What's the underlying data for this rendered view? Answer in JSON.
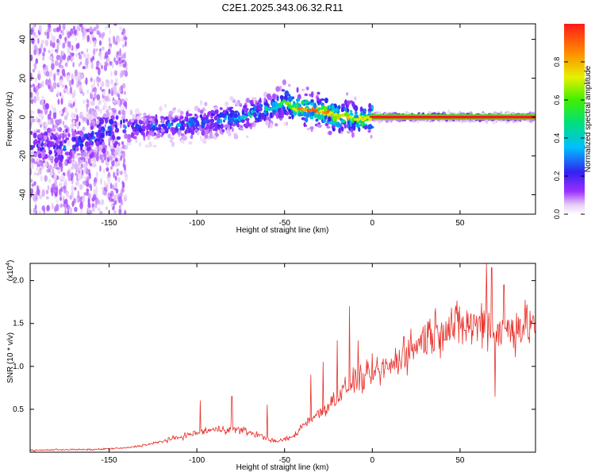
{
  "figure_title": "C2E1.2025.343.06.32.R11",
  "colors": {
    "line": "#e8302a",
    "axis": "#000000",
    "background": "#ffffff"
  },
  "chart_data": [
    {
      "type": "heatmap",
      "name": "spectrogram",
      "title": "C2E1.2025.343.06.32.R11",
      "xlabel": "Height of straight line (km)",
      "ylabel": "Frequency (Hz)",
      "xlim": [
        -195,
        93
      ],
      "ylim": [
        -50,
        48
      ],
      "xticks": [
        -150,
        -100,
        -50,
        0,
        50
      ],
      "yticks": [
        -40,
        -20,
        0,
        20,
        40
      ],
      "colorbar": {
        "label": "Normalized spectral amplitude",
        "range": [
          0,
          1
        ],
        "ticks": [
          0.0,
          0.2,
          0.4,
          0.6,
          0.8
        ],
        "tick_labels": [
          "0.0",
          "0.2",
          "0.4",
          "0.6",
          "0.8"
        ],
        "colormap": "rainbow (white-violet-blue-cyan-green-yellow-red)"
      },
      "ridge": {
        "description": "frequency of main spectral peak vs height",
        "x": [
          -190,
          -175,
          -165,
          -150,
          -130,
          -110,
          -90,
          -70,
          -55,
          -50,
          -45,
          -35,
          -25,
          -20,
          -15,
          -10,
          -5,
          0,
          10,
          20,
          40,
          60,
          80,
          93
        ],
        "y": [
          -14,
          -15,
          -13,
          -6,
          -5,
          -4,
          -2,
          1,
          5,
          8,
          4,
          4,
          2,
          0,
          1,
          -1,
          -1,
          0,
          0,
          0,
          0,
          0,
          0,
          0
        ],
        "peak_amplitude": [
          0.25,
          0.3,
          0.3,
          0.3,
          0.3,
          0.35,
          0.4,
          0.45,
          0.5,
          0.6,
          0.85,
          0.9,
          0.9,
          0.85,
          0.8,
          0.7,
          0.85,
          0.9,
          0.95,
          1,
          1,
          1,
          1,
          1
        ]
      }
    },
    {
      "type": "line",
      "name": "snr",
      "title": "",
      "xlabel": "Height of straight line (km)",
      "ylabel": "SNR (10 * v/v)",
      "y_multiplier": "(x10^4)",
      "y_multiplier_base": "(x10",
      "y_multiplier_exp": "4",
      "y_multiplier_close": ")",
      "xlim": [
        -195,
        93
      ],
      "ylim": [
        0,
        2.2
      ],
      "xticks": [
        -150,
        -100,
        -50,
        0,
        50
      ],
      "yticks": [
        0.5,
        1.0,
        1.5,
        2.0
      ],
      "ytick_labels": [
        "0.5",
        "1.0",
        "1.5",
        "2.0"
      ],
      "series": [
        {
          "name": "SNR",
          "color": "#e8302a",
          "x": [
            -195,
            -180,
            -160,
            -140,
            -125,
            -115,
            -105,
            -95,
            -85,
            -75,
            -65,
            -55,
            -45,
            -38,
            -30,
            -25,
            -20,
            -15,
            -10,
            -5,
            0,
            10,
            20,
            30,
            40,
            50,
            60,
            65,
            70,
            80,
            93
          ],
          "y": [
            0.02,
            0.03,
            0.03,
            0.05,
            0.1,
            0.15,
            0.2,
            0.25,
            0.27,
            0.26,
            0.2,
            0.12,
            0.18,
            0.35,
            0.45,
            0.55,
            0.65,
            0.75,
            0.85,
            0.85,
            0.9,
            1.0,
            1.15,
            1.35,
            1.45,
            1.47,
            1.48,
            1.55,
            1.4,
            1.45,
            1.5
          ]
        }
      ],
      "spikes": {
        "x": [
          -98,
          -80,
          -60,
          -35,
          -28,
          -20,
          -13,
          -8,
          0,
          18,
          65,
          68,
          70,
          75
        ],
        "y": [
          0.6,
          0.65,
          0.55,
          0.9,
          1.05,
          1.3,
          1.7,
          1.3,
          1.15,
          1.35,
          2.2,
          2.15,
          0.65,
          1.95
        ]
      }
    }
  ]
}
